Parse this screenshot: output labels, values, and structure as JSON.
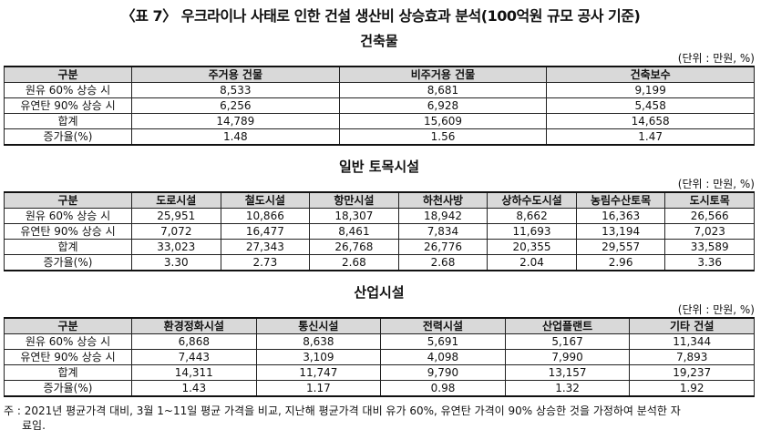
{
  "title": "〈표 7〉 우크라이나 사태로 인한 건설 생산비 상승효과 분석(100억원 규모 공사 기준)",
  "unit": "(단위 : 만원, %)",
  "sections": [
    {
      "title": "건축물",
      "headers": [
        "구분",
        "주거용 건물",
        "비주거용 건물",
        "건축보수"
      ],
      "rows": [
        [
          "원유 60% 상승 시",
          "8,533",
          "8,681",
          "9,199"
        ],
        [
          "유연탄 90% 상승 시",
          "6,256",
          "6,928",
          "5,458"
        ],
        [
          "합계",
          "14,789",
          "15,609",
          "14,658"
        ],
        [
          "증가율(%)",
          "1.48",
          "1.56",
          "1.47"
        ]
      ]
    },
    {
      "title": "일반 토목시설",
      "headers": [
        "구분",
        "도로시설",
        "철도시설",
        "항만시설",
        "하천사방",
        "상하수도시설",
        "농림수산토목",
        "도시토목"
      ],
      "rows": [
        [
          "원유 60% 상승 시",
          "25,951",
          "10,866",
          "18,307",
          "18,942",
          "8,662",
          "16,363",
          "26,566"
        ],
        [
          "유연탄 90% 상승 시",
          "7,072",
          "16,477",
          "8,461",
          "7,834",
          "11,693",
          "13,194",
          "7,023"
        ],
        [
          "합계",
          "33,023",
          "27,343",
          "26,768",
          "26,776",
          "20,355",
          "29,557",
          "33,589"
        ],
        [
          "증가율(%)",
          "3.30",
          "2.73",
          "2.68",
          "2.68",
          "2.04",
          "2.96",
          "3.36"
        ]
      ]
    },
    {
      "title": "산업시설",
      "headers": [
        "구분",
        "환경정화시설",
        "통신시설",
        "전력시설",
        "산업플랜트",
        "기타 건설"
      ],
      "rows": [
        [
          "원유 60% 상승 시",
          "6,868",
          "8,638",
          "5,691",
          "5,167",
          "11,344"
        ],
        [
          "유연탄 90% 상승 시",
          "7,443",
          "3,109",
          "4,098",
          "7,990",
          "7,893"
        ],
        [
          "합계",
          "14,311",
          "11,747",
          "9,790",
          "13,157",
          "19,237"
        ],
        [
          "증가율(%)",
          "1.43",
          "1.17",
          "0.98",
          "1.32",
          "1.92"
        ]
      ]
    }
  ],
  "note": {
    "line1": "주 : 2021년 평균가격 대비, 3월 1~11일 평균 가격을 비교, 지난해 평균가격 대비 유가 60%, 유연탄 가격이 90% 상승한 것을 가정하여 분석한 자",
    "line2": "료임."
  }
}
